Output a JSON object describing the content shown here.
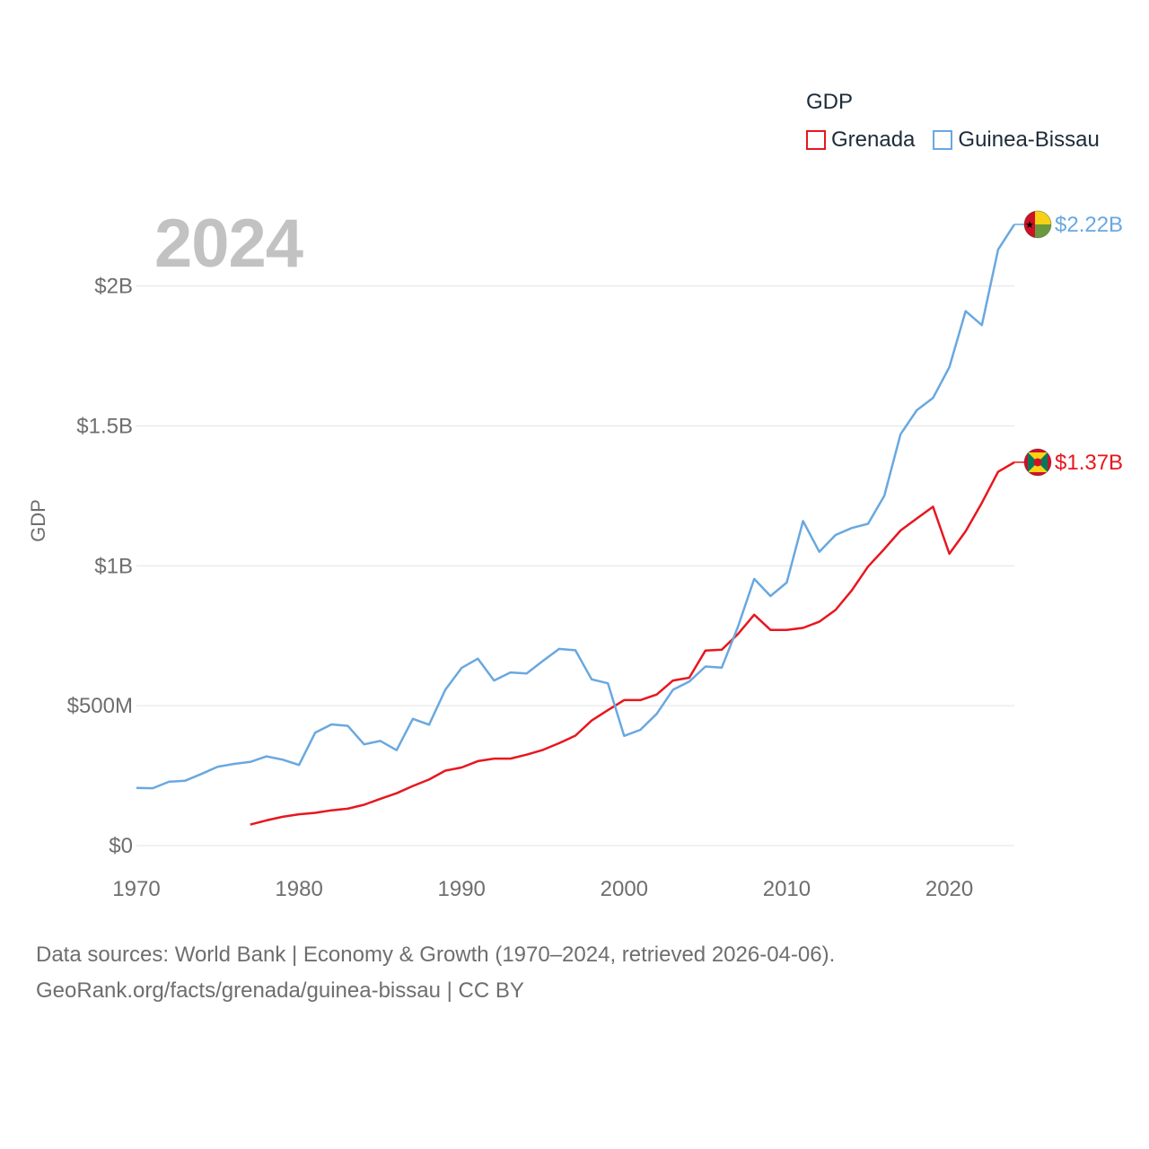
{
  "legend": {
    "title": "GDP",
    "series": [
      {
        "name": "Grenada",
        "color": "#e8161e"
      },
      {
        "name": "Guinea-Bissau",
        "color": "#69a8e0"
      }
    ]
  },
  "year_label": "2024",
  "source": {
    "line1": "Data sources: World Bank | Economy & Growth (1970–2024, retrieved 2026-04-06).",
    "line2": "GeoRank.org/facts/grenada/guinea-bissau | CC BY"
  },
  "chart_data": {
    "type": "line",
    "title": "",
    "xlabel": "",
    "ylabel": "GDP",
    "xlim": [
      1970,
      2024
    ],
    "ylim": [
      0,
      2220000000
    ],
    "x_ticks": [
      1970,
      1980,
      1990,
      2000,
      2010,
      2020
    ],
    "x_tick_labels": [
      "1970",
      "1980",
      "1990",
      "2000",
      "2010",
      "2020"
    ],
    "y_ticks": [
      0,
      500000000,
      1000000000,
      1500000000,
      2000000000
    ],
    "y_tick_labels": [
      "$0",
      "$500M",
      "$1B",
      "$1.5B",
      "$2B"
    ],
    "grid": true,
    "legend_position": "top-right",
    "series": [
      {
        "name": "Grenada",
        "color": "#e8161e",
        "end_label": "$1.37B",
        "flag_icon": "grenada-flag-icon",
        "x": [
          1977,
          1978,
          1979,
          1980,
          1981,
          1982,
          1983,
          1984,
          1985,
          1986,
          1987,
          1988,
          1989,
          1990,
          1991,
          1992,
          1993,
          1994,
          1995,
          1996,
          1997,
          1998,
          1999,
          2000,
          2001,
          2002,
          2003,
          2004,
          2005,
          2006,
          2007,
          2008,
          2009,
          2010,
          2011,
          2012,
          2013,
          2014,
          2015,
          2016,
          2017,
          2018,
          2019,
          2020,
          2021,
          2022,
          2023,
          2024
        ],
        "values": [
          75000000,
          90000000,
          103000000,
          112000000,
          117000000,
          126000000,
          132000000,
          146000000,
          167000000,
          187000000,
          213000000,
          236000000,
          268000000,
          279000000,
          302000000,
          311000000,
          311000000,
          325000000,
          342000000,
          366000000,
          393000000,
          447000000,
          484000000,
          520000000,
          520000000,
          540000000,
          590000000,
          600000000,
          697000000,
          700000000,
          756000000,
          825000000,
          771000000,
          771000000,
          778000000,
          800000000,
          842000000,
          912000000,
          997000000,
          1060000000,
          1126000000,
          1169000000,
          1211000000,
          1043000000,
          1123000000,
          1225000000,
          1336000000,
          1370000000
        ]
      },
      {
        "name": "Guinea-Bissau",
        "color": "#69a8e0",
        "end_label": "$2.22B",
        "flag_icon": "guinea-bissau-flag-icon",
        "x": [
          1970,
          1971,
          1972,
          1973,
          1974,
          1975,
          1976,
          1977,
          1978,
          1979,
          1980,
          1981,
          1982,
          1983,
          1984,
          1985,
          1986,
          1987,
          1988,
          1989,
          1990,
          1991,
          1992,
          1993,
          1994,
          1995,
          1996,
          1997,
          1998,
          1999,
          2000,
          2001,
          2002,
          2003,
          2004,
          2005,
          2006,
          2007,
          2008,
          2009,
          2010,
          2011,
          2012,
          2013,
          2014,
          2015,
          2016,
          2017,
          2018,
          2019,
          2020,
          2021,
          2022,
          2023,
          2024
        ],
        "values": [
          206000000,
          205000000,
          228000000,
          232000000,
          256000000,
          282000000,
          292000000,
          299000000,
          319000000,
          307000000,
          288000000,
          404000000,
          433000000,
          428000000,
          362000000,
          374000000,
          341000000,
          453000000,
          432000000,
          557000000,
          635000000,
          668000000,
          590000000,
          619000000,
          615000000,
          660000000,
          703000000,
          698000000,
          594000000,
          580000000,
          392000000,
          414000000,
          471000000,
          557000000,
          586000000,
          640000000,
          636000000,
          782000000,
          953000000,
          892000000,
          940000000,
          1160000000,
          1050000000,
          1110000000,
          1135000000,
          1150000000,
          1250000000,
          1470000000,
          1556000000,
          1600000000,
          1710000000,
          1910000000,
          1860000000,
          2130000000,
          2220000000
        ]
      }
    ]
  }
}
